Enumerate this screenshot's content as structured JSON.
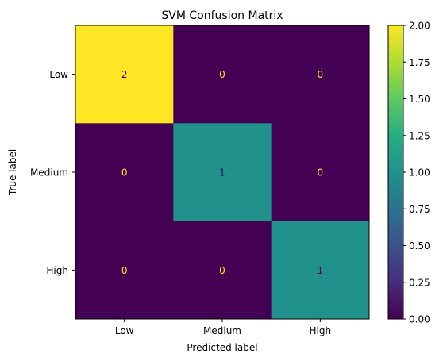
{
  "chart_data": {
    "type": "heatmap",
    "title": "SVM Confusion Matrix",
    "xlabel": "Predicted label",
    "ylabel": "True label",
    "x_categories": [
      "Low",
      "Medium",
      "High"
    ],
    "y_categories": [
      "Low",
      "Medium",
      "High"
    ],
    "values": [
      [
        2,
        0,
        0
      ],
      [
        0,
        1,
        0
      ],
      [
        0,
        0,
        1
      ]
    ],
    "colormap": "viridis",
    "color_range": [
      0.0,
      2.0
    ],
    "colorbar_ticks": [
      "0.00",
      "0.25",
      "0.50",
      "0.75",
      "1.00",
      "1.25",
      "1.50",
      "1.75",
      "2.00"
    ],
    "colors": {
      "low": "#440154",
      "mid": "#21918c",
      "high": "#fde725",
      "text_on_dark": "#fde725",
      "text_on_light": "#440154"
    }
  }
}
